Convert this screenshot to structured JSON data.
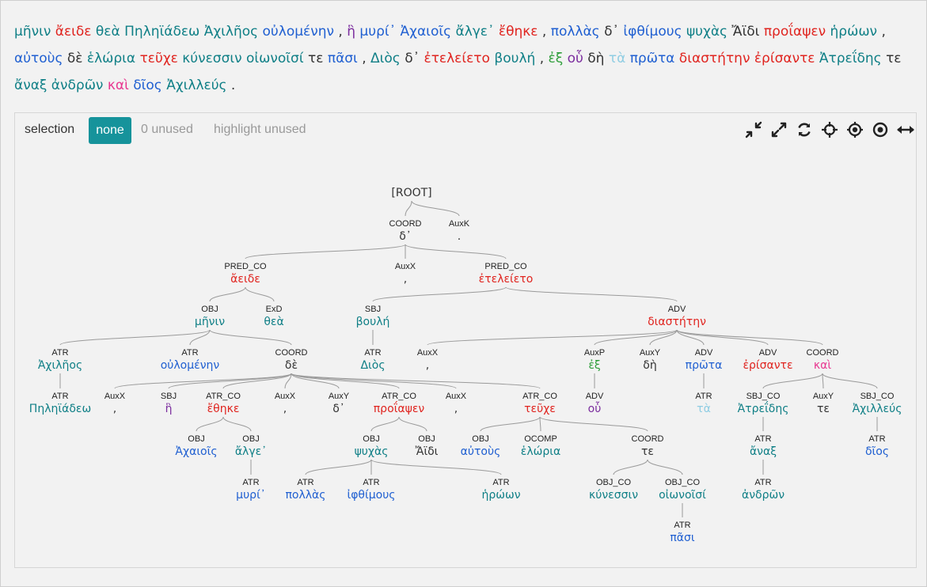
{
  "sentence": [
    {
      "t": "μῆνιν",
      "c": "#0f7f86"
    },
    {
      "t": "ἄειδε",
      "c": "#e0241f"
    },
    {
      "t": "θεὰ",
      "c": "#0f7f86"
    },
    {
      "t": "Πηληϊάδεω",
      "c": "#0f7f86"
    },
    {
      "t": "Ἀχιλῆος",
      "c": "#0f7f86"
    },
    {
      "t": "οὐλομένην",
      "c": "#1f5fd1"
    },
    {
      "t": ",",
      "c": "#333333"
    },
    {
      "t": "ἣ",
      "c": "#7b2d9e"
    },
    {
      "t": "μυρί᾽",
      "c": "#1f5fd1"
    },
    {
      "t": "Ἀχαιοῖς",
      "c": "#1f5fd1"
    },
    {
      "t": "ἄλγε᾽",
      "c": "#0f7f86"
    },
    {
      "t": "ἔθηκε",
      "c": "#e0241f"
    },
    {
      "t": ",",
      "c": "#333333"
    },
    {
      "t": "πολλὰς",
      "c": "#1f5fd1"
    },
    {
      "t": "δ᾽",
      "c": "#333333"
    },
    {
      "t": "ἰφθίμους",
      "c": "#1f5fd1"
    },
    {
      "t": "ψυχὰς",
      "c": "#0f7f86"
    },
    {
      "t": "Ἄϊδι",
      "c": "#333333"
    },
    {
      "t": "προΐαψεν",
      "c": "#e0241f"
    },
    {
      "t": "ἡρώων",
      "c": "#0f7f86"
    },
    {
      "t": ",",
      "c": "#333333"
    },
    {
      "t": "αὐτοὺς",
      "c": "#1f5fd1"
    },
    {
      "t": "δὲ",
      "c": "#333333"
    },
    {
      "t": "ἑλώρια",
      "c": "#0f7f86"
    },
    {
      "t": "τεῦχε",
      "c": "#e0241f"
    },
    {
      "t": "κύνεσσιν",
      "c": "#0f7f86"
    },
    {
      "t": "οἰωνοῖσί",
      "c": "#0f7f86"
    },
    {
      "t": "τε",
      "c": "#333333"
    },
    {
      "t": "πᾶσι",
      "c": "#1f5fd1"
    },
    {
      "t": ",",
      "c": "#333333"
    },
    {
      "t": "Διὸς",
      "c": "#0f7f86"
    },
    {
      "t": "δ᾽",
      "c": "#333333"
    },
    {
      "t": "ἐτελείετο",
      "c": "#e0241f"
    },
    {
      "t": "βουλή",
      "c": "#0f7f86"
    },
    {
      "t": ",",
      "c": "#333333"
    },
    {
      "t": "ἐξ",
      "c": "#2e9e3a"
    },
    {
      "t": "οὗ",
      "c": "#7b2d9e"
    },
    {
      "t": "δὴ",
      "c": "#333333"
    },
    {
      "t": "τὰ",
      "c": "#8fcde3"
    },
    {
      "t": "πρῶτα",
      "c": "#1f5fd1"
    },
    {
      "t": "διαστήτην",
      "c": "#e0241f"
    },
    {
      "t": "ἐρίσαντε",
      "c": "#e0241f"
    },
    {
      "t": "Ἀτρεΐδης",
      "c": "#0f7f86"
    },
    {
      "t": "τε",
      "c": "#333333"
    },
    {
      "t": "ἄναξ",
      "c": "#0f7f86"
    },
    {
      "t": "ἀνδρῶν",
      "c": "#0f7f86"
    },
    {
      "t": "καὶ",
      "c": "#e8358f"
    },
    {
      "t": "δῖος",
      "c": "#1f5fd1"
    },
    {
      "t": "Ἀχιλλεύς",
      "c": "#0f7f86"
    },
    {
      "t": ".",
      "c": "#333333"
    }
  ],
  "toolbar": {
    "label": "selection",
    "none_button": "none",
    "unused_link": "0 unused",
    "highlight_link": "highlight unused",
    "accent": "#16939b",
    "icons": [
      "compress-icon",
      "expand-icon",
      "refresh-icon",
      "move-icon",
      "crosshair-icon",
      "target-icon",
      "width-icon"
    ]
  },
  "tree": {
    "nodes": [
      {
        "id": "root",
        "label": "",
        "form": "[ROOT]",
        "c": "#333333",
        "parent": null
      },
      {
        "id": "de",
        "label": "COORD",
        "form": "δ᾽",
        "c": "#333333",
        "parent": "root"
      },
      {
        "id": "stop",
        "label": "AuxK",
        "form": ".",
        "c": "#333333",
        "parent": "root"
      },
      {
        "id": "aeide",
        "label": "PRED_CO",
        "form": "ἄειδε",
        "c": "#e0241f",
        "parent": "de"
      },
      {
        "id": "comma0",
        "label": "AuxX",
        "form": ",",
        "c": "#333333",
        "parent": "de"
      },
      {
        "id": "eteleieto",
        "label": "PRED_CO",
        "form": "ἐτελείετο",
        "c": "#e0241f",
        "parent": "de"
      },
      {
        "id": "menin",
        "label": "OBJ",
        "form": "μῆνιν",
        "c": "#0f7f86",
        "parent": "aeide"
      },
      {
        "id": "thea",
        "label": "ExD",
        "form": "θεὰ",
        "c": "#0f7f86",
        "parent": "aeide"
      },
      {
        "id": "boule",
        "label": "SBJ",
        "form": "βουλή",
        "c": "#0f7f86",
        "parent": "eteleieto"
      },
      {
        "id": "diastheten",
        "label": "ADV",
        "form": "διαστήτην",
        "c": "#e0241f",
        "parent": "eteleieto"
      },
      {
        "id": "achileos",
        "label": "ATR",
        "form": "Ἀχιλῆος",
        "c": "#0f7f86",
        "parent": "menin"
      },
      {
        "id": "oulomenen",
        "label": "ATR",
        "form": "οὐλομένην",
        "c": "#1f5fd1",
        "parent": "menin"
      },
      {
        "id": "de2",
        "label": "COORD",
        "form": "δὲ",
        "c": "#333333",
        "parent": "menin"
      },
      {
        "id": "dios",
        "label": "ATR",
        "form": "Διὸς",
        "c": "#0f7f86",
        "parent": "boule"
      },
      {
        "id": "comma4",
        "label": "AuxX",
        "form": ",",
        "c": "#333333",
        "parent": "diastheten"
      },
      {
        "id": "ex",
        "label": "AuxP",
        "form": "ἐξ",
        "c": "#2e9e3a",
        "parent": "diastheten"
      },
      {
        "id": "de3",
        "label": "AuxY",
        "form": "δὴ",
        "c": "#333333",
        "parent": "diastheten"
      },
      {
        "id": "prota",
        "label": "ADV",
        "form": "πρῶτα",
        "c": "#1f5fd1",
        "parent": "diastheten"
      },
      {
        "id": "erisante",
        "label": "ADV",
        "form": "ἐρίσαντε",
        "c": "#e0241f",
        "parent": "diastheten"
      },
      {
        "id": "kai",
        "label": "COORD",
        "form": "καὶ",
        "c": "#e8358f",
        "parent": "diastheten"
      },
      {
        "id": "peleiadeo",
        "label": "ATR",
        "form": "Πηληϊάδεω",
        "c": "#0f7f86",
        "parent": "achileos"
      },
      {
        "id": "comma1",
        "label": "AuxX",
        "form": ",",
        "c": "#333333",
        "parent": "de2"
      },
      {
        "id": "he",
        "label": "SBJ",
        "form": "ἣ",
        "c": "#7b2d9e",
        "parent": "de2"
      },
      {
        "id": "etheke",
        "label": "ATR_CO",
        "form": "ἔθηκε",
        "c": "#e0241f",
        "parent": "de2"
      },
      {
        "id": "comma2",
        "label": "AuxX",
        "form": ",",
        "c": "#333333",
        "parent": "de2"
      },
      {
        "id": "d_part",
        "label": "AuxY",
        "form": "δ᾽",
        "c": "#333333",
        "parent": "de2"
      },
      {
        "id": "proiapsen",
        "label": "ATR_CO",
        "form": "προΐαψεν",
        "c": "#e0241f",
        "parent": "de2"
      },
      {
        "id": "comma3",
        "label": "AuxX",
        "form": ",",
        "c": "#333333",
        "parent": "de2"
      },
      {
        "id": "teuche",
        "label": "ATR_CO",
        "form": "τεῦχε",
        "c": "#e0241f",
        "parent": "de2"
      },
      {
        "id": "hou",
        "label": "ADV",
        "form": "οὗ",
        "c": "#7b2d9e",
        "parent": "ex"
      },
      {
        "id": "ta",
        "label": "ATR",
        "form": "τὰ",
        "c": "#8fcde3",
        "parent": "prota"
      },
      {
        "id": "atreides",
        "label": "SBJ_CO",
        "form": "Ἀτρεΐδης",
        "c": "#0f7f86",
        "parent": "kai"
      },
      {
        "id": "te2",
        "label": "AuxY",
        "form": "τε",
        "c": "#333333",
        "parent": "kai"
      },
      {
        "id": "achilleus",
        "label": "SBJ_CO",
        "form": "Ἀχιλλεύς",
        "c": "#0f7f86",
        "parent": "kai"
      },
      {
        "id": "achaiois",
        "label": "OBJ",
        "form": "Ἀχαιοῖς",
        "c": "#1f5fd1",
        "parent": "etheke"
      },
      {
        "id": "alge",
        "label": "OBJ",
        "form": "ἄλγε᾽",
        "c": "#0f7f86",
        "parent": "etheke"
      },
      {
        "id": "psuchas",
        "label": "OBJ",
        "form": "ψυχὰς",
        "c": "#0f7f86",
        "parent": "proiapsen"
      },
      {
        "id": "aidi",
        "label": "OBJ",
        "form": "Ἄϊδι",
        "c": "#333333",
        "parent": "proiapsen"
      },
      {
        "id": "autous",
        "label": "OBJ",
        "form": "αὐτοὺς",
        "c": "#1f5fd1",
        "parent": "teuche"
      },
      {
        "id": "helória",
        "label": "OCOMP",
        "form": "ἑλώρια",
        "c": "#0f7f86",
        "parent": "teuche"
      },
      {
        "id": "te",
        "label": "COORD",
        "form": "τε",
        "c": "#333333",
        "parent": "teuche"
      },
      {
        "id": "anax",
        "label": "ATR",
        "form": "ἄναξ",
        "c": "#0f7f86",
        "parent": "atreides"
      },
      {
        "id": "dios2",
        "label": "ATR",
        "form": "δῖος",
        "c": "#1f5fd1",
        "parent": "achilleus"
      },
      {
        "id": "muri",
        "label": "ATR",
        "form": "μυρί᾽",
        "c": "#1f5fd1",
        "parent": "alge"
      },
      {
        "id": "pollas",
        "label": "ATR",
        "form": "πολλὰς",
        "c": "#1f5fd1",
        "parent": "psuchas"
      },
      {
        "id": "iphthimous",
        "label": "ATR",
        "form": "ἰφθίμους",
        "c": "#1f5fd1",
        "parent": "psuchas"
      },
      {
        "id": "heroon",
        "label": "ATR",
        "form": "ἡρώων",
        "c": "#0f7f86",
        "parent": "psuchas"
      },
      {
        "id": "kunessin",
        "label": "OBJ_CO",
        "form": "κύνεσσιν",
        "c": "#0f7f86",
        "parent": "te"
      },
      {
        "id": "oionoisi",
        "label": "OBJ_CO",
        "form": "οἰωνοῖσί",
        "c": "#0f7f86",
        "parent": "te"
      },
      {
        "id": "andron",
        "label": "ATR",
        "form": "ἀνδρῶν",
        "c": "#0f7f86",
        "parent": "anax"
      },
      {
        "id": "pasi",
        "label": "ATR",
        "form": "πᾶσι",
        "c": "#1f5fd1",
        "parent": "oionoisi"
      }
    ]
  }
}
